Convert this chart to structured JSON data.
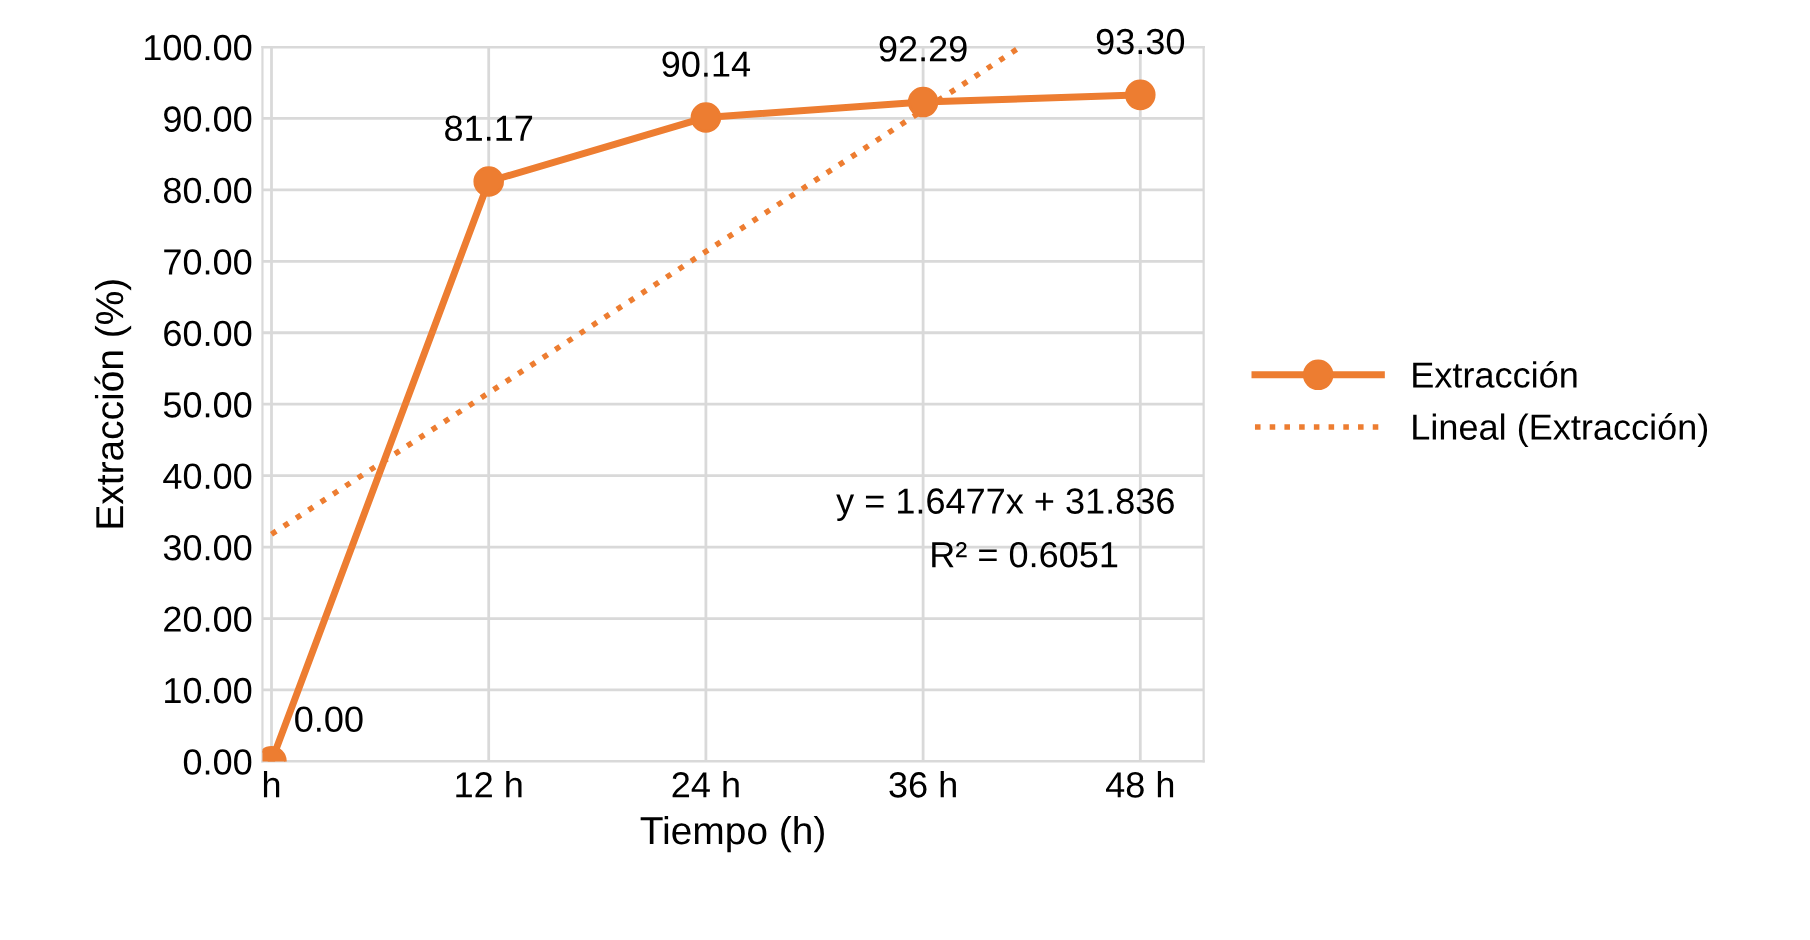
{
  "chart_data": {
    "type": "line",
    "xlabel": "Tiempo (h)",
    "ylabel": "Extracción (%)",
    "x": [
      0,
      12,
      24,
      36,
      48
    ],
    "xlim": [
      -0.5,
      51.5
    ],
    "xticks": [
      {
        "value": 0,
        "label": "h"
      },
      {
        "value": 12,
        "label": "12 h"
      },
      {
        "value": 24,
        "label": "24 h"
      },
      {
        "value": 36,
        "label": "36 h"
      },
      {
        "value": 48,
        "label": "48 h"
      }
    ],
    "ylim": [
      0,
      100
    ],
    "yticks": [
      {
        "value": 0,
        "label": "0.00"
      },
      {
        "value": 10,
        "label": "10.00"
      },
      {
        "value": 20,
        "label": "20.00"
      },
      {
        "value": 30,
        "label": "30.00"
      },
      {
        "value": 40,
        "label": "40.00"
      },
      {
        "value": 50,
        "label": "50.00"
      },
      {
        "value": 60,
        "label": "60.00"
      },
      {
        "value": 70,
        "label": "70.00"
      },
      {
        "value": 80,
        "label": "80.00"
      },
      {
        "value": 90,
        "label": "90.00"
      },
      {
        "value": 100,
        "label": "100.00"
      }
    ],
    "series": [
      {
        "name": "Extracción",
        "color": "#ed7d31",
        "values": [
          0,
          81.17,
          90.14,
          92.29,
          93.3
        ],
        "marker": "circle",
        "line_style": "solid",
        "value_labels": [
          "0.00",
          "81.17",
          "90.14",
          "92.29",
          "93.30"
        ]
      },
      {
        "name": "Lineal (Extracción)",
        "color": "#ed7d31",
        "type": "line",
        "x": [
          0,
          41.37
        ],
        "values": [
          31.8,
          100
        ],
        "marker": "none",
        "line_style": "dotted"
      }
    ],
    "annotations": [
      "y = 1.6477x + 31.836",
      "R² = 0.6051"
    ],
    "grid": true,
    "legend": "right"
  }
}
